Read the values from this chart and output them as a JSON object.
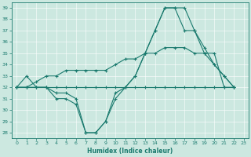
{
  "xlabel": "Humidex (Indice chaleur)",
  "bg_color": "#cce8e0",
  "line_color": "#1a7a6e",
  "xlim": [
    -0.5,
    23.5
  ],
  "ylim": [
    27.5,
    39.5
  ],
  "yticks": [
    28,
    29,
    30,
    31,
    32,
    33,
    34,
    35,
    36,
    37,
    38,
    39
  ],
  "xticks": [
    0,
    1,
    2,
    3,
    4,
    5,
    6,
    7,
    8,
    9,
    10,
    11,
    12,
    13,
    14,
    15,
    16,
    17,
    18,
    19,
    20,
    21,
    22,
    23
  ],
  "s1_x": [
    0,
    1,
    2,
    3,
    4,
    5,
    6,
    7,
    8,
    9,
    10,
    11,
    12,
    13,
    14,
    15,
    16,
    17,
    18,
    19,
    20,
    21,
    22
  ],
  "s1_y": [
    32,
    33,
    32,
    32,
    31,
    31,
    30.5,
    28,
    28,
    29,
    31.5,
    32,
    33,
    35,
    37,
    39,
    39,
    39,
    37,
    35.5,
    34,
    33,
    32
  ],
  "s2_x": [
    0,
    1,
    2,
    3,
    4,
    5,
    6,
    7,
    8,
    9,
    10,
    11,
    12,
    13,
    14,
    15,
    16,
    17,
    18,
    19,
    20,
    21,
    22
  ],
  "s2_y": [
    32,
    32,
    32,
    32,
    31.5,
    31.5,
    31,
    28,
    28,
    29,
    31,
    32,
    33,
    35,
    37,
    39,
    39,
    37,
    37,
    35,
    34,
    33,
    32
  ],
  "s3_x": [
    0,
    1,
    2,
    3,
    4,
    5,
    6,
    7,
    8,
    9,
    10,
    11,
    12,
    13,
    14,
    15,
    16,
    17,
    18,
    19,
    20,
    21,
    22
  ],
  "s3_y": [
    32,
    32,
    32,
    32,
    32,
    32,
    32,
    32,
    32,
    32,
    32,
    32,
    32,
    32,
    32,
    32,
    32,
    32,
    32,
    32,
    32,
    32,
    32
  ],
  "s4_x": [
    0,
    1,
    2,
    3,
    4,
    5,
    6,
    7,
    8,
    9,
    10,
    11,
    12,
    13,
    14,
    15,
    16,
    17,
    18,
    19,
    20,
    21,
    22
  ],
  "s4_y": [
    32,
    32,
    32.5,
    33,
    33,
    33.5,
    33.5,
    33.5,
    33.5,
    33.5,
    34,
    34.5,
    34.5,
    35,
    35,
    35.5,
    35.5,
    35.5,
    35,
    35,
    35,
    32,
    32
  ]
}
